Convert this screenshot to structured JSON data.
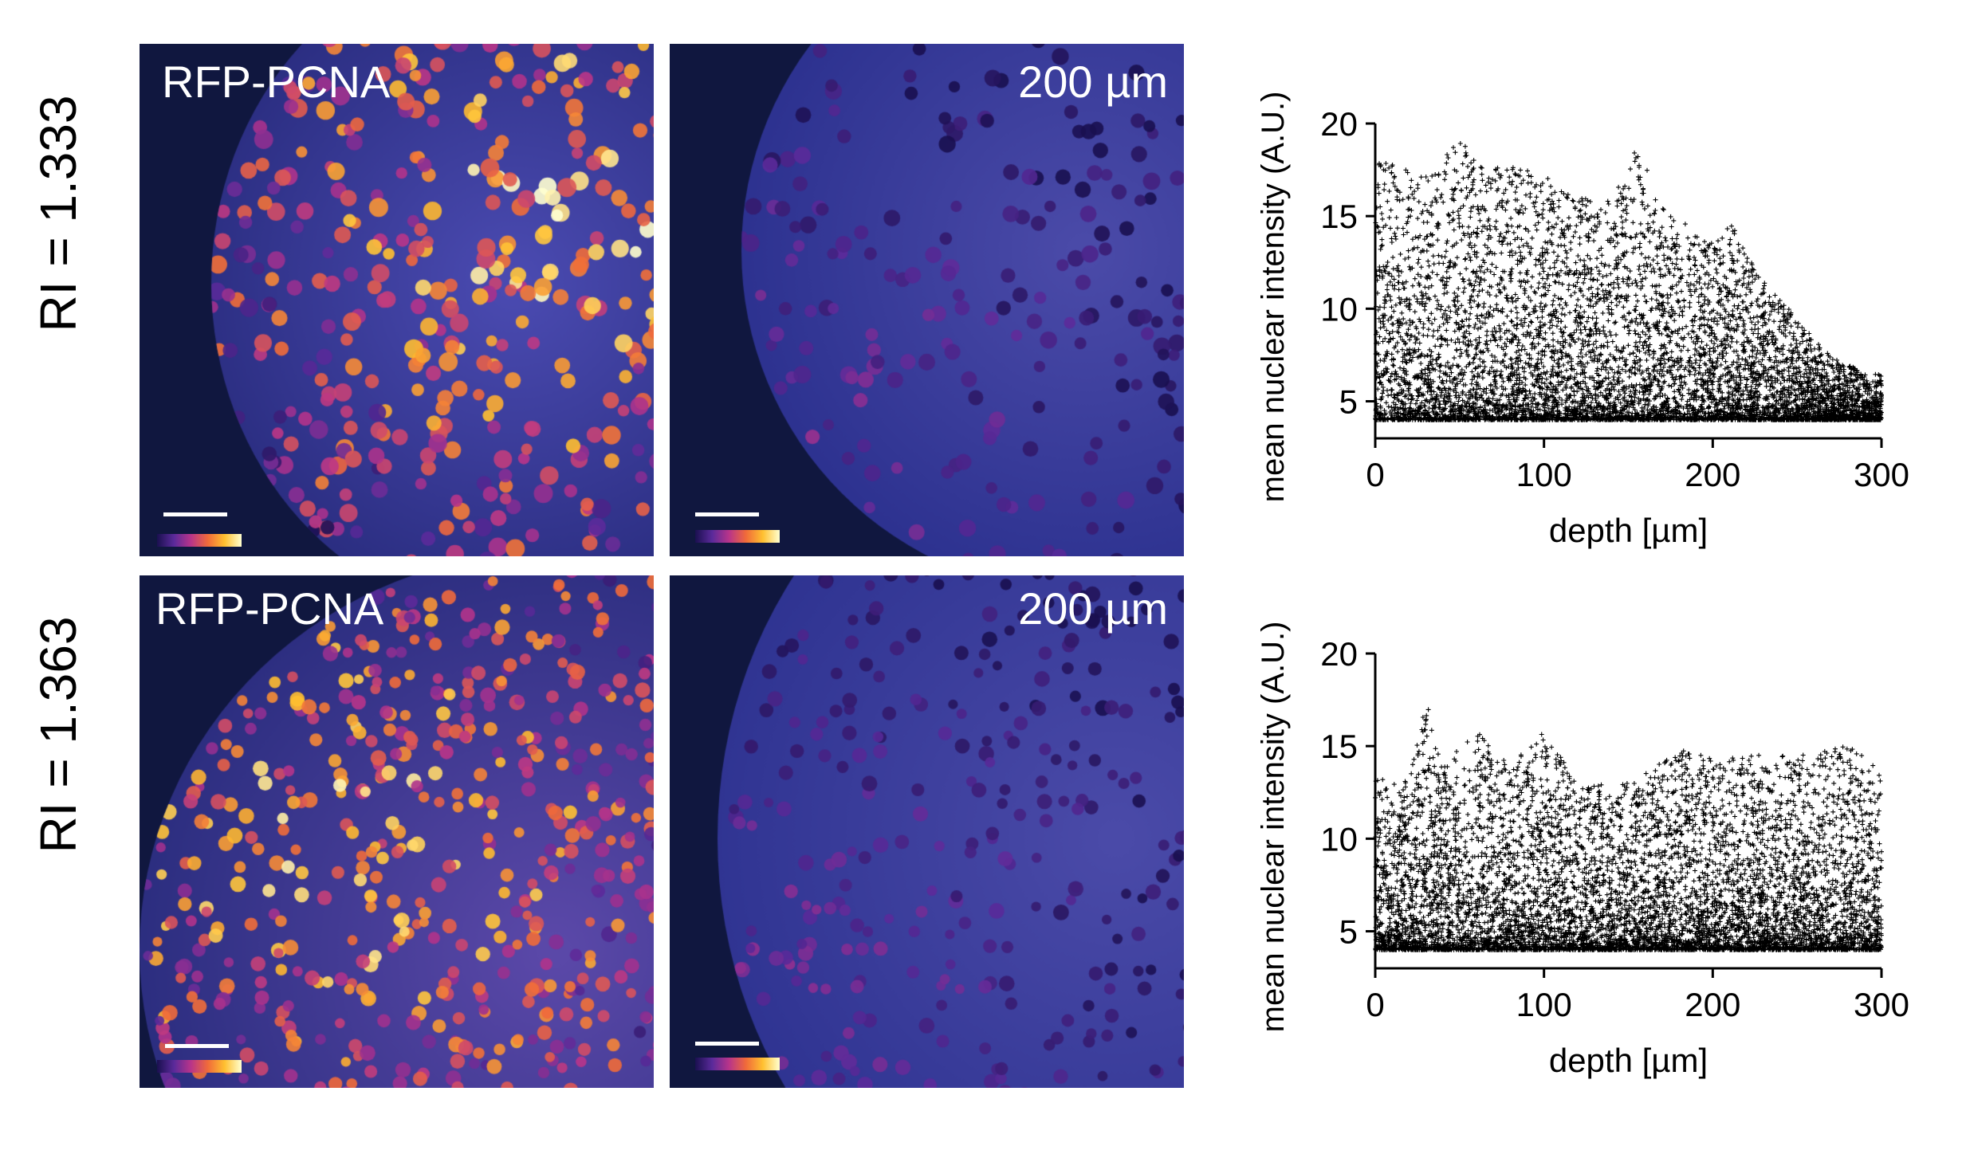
{
  "figure": {
    "rows": [
      {
        "row_label": "RI = 1.333",
        "left_panel_label": "RFP-PCNA",
        "right_panel_label": "200 µm",
        "chart": {
          "type": "scatter",
          "xlabel": "depth [µm]",
          "ylabel": "mean nuclear intensity (A.U.)",
          "xlim": [
            0,
            300
          ],
          "ylim": [
            3,
            20
          ],
          "xticks": [
            "0",
            "100",
            "200",
            "300"
          ],
          "yticks": [
            "5",
            "10",
            "15",
            "20"
          ],
          "marker": "+",
          "color": "#000000"
        }
      },
      {
        "row_label": "RI = 1.363",
        "left_panel_label": "RFP-PCNA",
        "right_panel_label": "200 µm",
        "chart": {
          "type": "scatter",
          "xlabel": "depth [µm]",
          "ylabel": "mean nuclear intensity (A.U.)",
          "xlim": [
            0,
            300
          ],
          "ylim": [
            3,
            20
          ],
          "xticks": [
            "0",
            "100",
            "200",
            "300"
          ],
          "yticks": [
            "5",
            "10",
            "15",
            "20"
          ],
          "marker": "+",
          "color": "#000000"
        }
      }
    ],
    "colors": {
      "image_background": "#0f1640",
      "colormap": [
        "#1a1050",
        "#5a2a9a",
        "#b8348a",
        "#f06a3a",
        "#ffc030",
        "#ffffd0"
      ],
      "text_on_image": "#ffffff"
    }
  },
  "chart_data": [
    {
      "type": "scatter",
      "xlabel": "depth [µm]",
      "ylabel": "mean nuclear intensity (A.U.)",
      "xlim": [
        0,
        300
      ],
      "ylim": [
        3,
        20
      ],
      "xticks": [
        0,
        100,
        200,
        300
      ],
      "yticks": [
        5,
        10,
        15,
        20
      ],
      "grid": false,
      "upper_envelope": {
        "x": [
          0,
          10,
          20,
          40,
          45,
          60,
          80,
          100,
          120,
          140,
          155,
          170,
          200,
          210,
          230,
          250,
          270,
          290,
          300
        ],
        "y": [
          18,
          18,
          17.5,
          17.5,
          19.2,
          18.5,
          17.8,
          17.2,
          16,
          15.8,
          18.9,
          15.5,
          13.5,
          14.8,
          11.5,
          9.5,
          7.5,
          6.5,
          6.5
        ]
      },
      "floor": 4
    },
    {
      "type": "scatter",
      "xlabel": "depth [µm]",
      "ylabel": "mean nuclear intensity (A.U.)",
      "xlim": [
        0,
        300
      ],
      "ylim": [
        3,
        20
      ],
      "xticks": [
        0,
        100,
        200,
        300
      ],
      "yticks": [
        5,
        10,
        15,
        20
      ],
      "grid": false,
      "upper_envelope": {
        "x": [
          0,
          10,
          20,
          30,
          40,
          60,
          80,
          100,
          120,
          150,
          180,
          200,
          220,
          250,
          280,
          290,
          300
        ],
        "y": [
          13.2,
          13.2,
          13.5,
          17.5,
          14,
          15.8,
          14,
          15.8,
          13,
          13,
          14.8,
          14.5,
          14.5,
          14.5,
          15,
          14.5,
          13.5
        ]
      },
      "floor": 4
    }
  ]
}
